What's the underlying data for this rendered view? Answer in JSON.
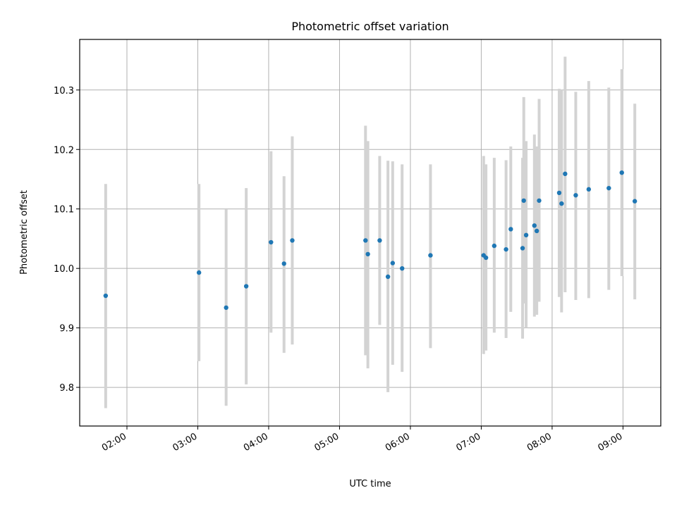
{
  "chart_data": {
    "type": "scatter",
    "title": "Photometric offset variation",
    "xlabel": "UTC time",
    "ylabel": "Photometric offset",
    "xlim": [
      "01:20",
      "09:32"
    ],
    "ylim": [
      9.735,
      10.385
    ],
    "x_ticks": [
      "02:00",
      "03:00",
      "04:00",
      "05:00",
      "06:00",
      "07:00",
      "08:00",
      "09:00"
    ],
    "y_ticks": [
      "9.8",
      "9.9",
      "10.0",
      "10.1",
      "10.2",
      "10.3"
    ],
    "grid": true,
    "colors": {
      "marker": "#1f77b4",
      "errorbar": "#d3d3d3",
      "grid": "#b0b0b0"
    },
    "points": [
      {
        "x": "01:42",
        "y": 9.954,
        "ylow": 9.765,
        "yhigh": 10.142
      },
      {
        "x": "03:01",
        "y": 9.993,
        "ylow": 9.844,
        "yhigh": 10.142
      },
      {
        "x": "03:24",
        "y": 9.934,
        "ylow": 9.769,
        "yhigh": 10.099
      },
      {
        "x": "03:41",
        "y": 9.97,
        "ylow": 9.805,
        "yhigh": 10.135
      },
      {
        "x": "04:02",
        "y": 10.044,
        "ylow": 9.892,
        "yhigh": 10.197
      },
      {
        "x": "04:13",
        "y": 10.008,
        "ylow": 9.858,
        "yhigh": 10.155
      },
      {
        "x": "04:20",
        "y": 10.047,
        "ylow": 9.872,
        "yhigh": 10.222
      },
      {
        "x": "05:22",
        "y": 10.047,
        "ylow": 9.854,
        "yhigh": 10.24
      },
      {
        "x": "05:24",
        "y": 10.024,
        "ylow": 9.832,
        "yhigh": 10.214
      },
      {
        "x": "05:34",
        "y": 10.047,
        "ylow": 9.905,
        "yhigh": 10.189
      },
      {
        "x": "05:41",
        "y": 9.986,
        "ylow": 9.792,
        "yhigh": 10.181
      },
      {
        "x": "05:45",
        "y": 10.009,
        "ylow": 9.838,
        "yhigh": 10.18
      },
      {
        "x": "05:53",
        "y": 10.0,
        "ylow": 9.826,
        "yhigh": 10.175
      },
      {
        "x": "06:17",
        "y": 10.022,
        "ylow": 9.866,
        "yhigh": 10.175
      },
      {
        "x": "07:02",
        "y": 10.022,
        "ylow": 9.856,
        "yhigh": 10.189
      },
      {
        "x": "07:04",
        "y": 10.018,
        "ylow": 9.862,
        "yhigh": 10.175
      },
      {
        "x": "07:11",
        "y": 10.038,
        "ylow": 9.892,
        "yhigh": 10.186
      },
      {
        "x": "07:21",
        "y": 10.032,
        "ylow": 9.883,
        "yhigh": 10.182
      },
      {
        "x": "07:25",
        "y": 10.066,
        "ylow": 9.927,
        "yhigh": 10.205
      },
      {
        "x": "07:35",
        "y": 10.034,
        "ylow": 9.882,
        "yhigh": 10.186
      },
      {
        "x": "07:36",
        "y": 10.114,
        "ylow": 9.941,
        "yhigh": 10.288
      },
      {
        "x": "07:38",
        "y": 10.056,
        "ylow": 9.9,
        "yhigh": 10.214
      },
      {
        "x": "07:45",
        "y": 10.072,
        "ylow": 9.919,
        "yhigh": 10.225
      },
      {
        "x": "07:47",
        "y": 10.063,
        "ylow": 9.922,
        "yhigh": 10.205
      },
      {
        "x": "07:49",
        "y": 10.114,
        "ylow": 9.944,
        "yhigh": 10.285
      },
      {
        "x": "08:06",
        "y": 10.127,
        "ylow": 9.952,
        "yhigh": 10.302
      },
      {
        "x": "08:08",
        "y": 10.109,
        "ylow": 9.926,
        "yhigh": 10.3
      },
      {
        "x": "08:11",
        "y": 10.159,
        "ylow": 9.96,
        "yhigh": 10.356
      },
      {
        "x": "08:20",
        "y": 10.123,
        "ylow": 9.947,
        "yhigh": 10.297
      },
      {
        "x": "08:31",
        "y": 10.133,
        "ylow": 9.95,
        "yhigh": 10.315
      },
      {
        "x": "08:48",
        "y": 10.135,
        "ylow": 9.964,
        "yhigh": 10.304
      },
      {
        "x": "08:59",
        "y": 10.161,
        "ylow": 9.987,
        "yhigh": 10.335
      },
      {
        "x": "09:10",
        "y": 10.113,
        "ylow": 9.948,
        "yhigh": 10.277
      }
    ]
  }
}
